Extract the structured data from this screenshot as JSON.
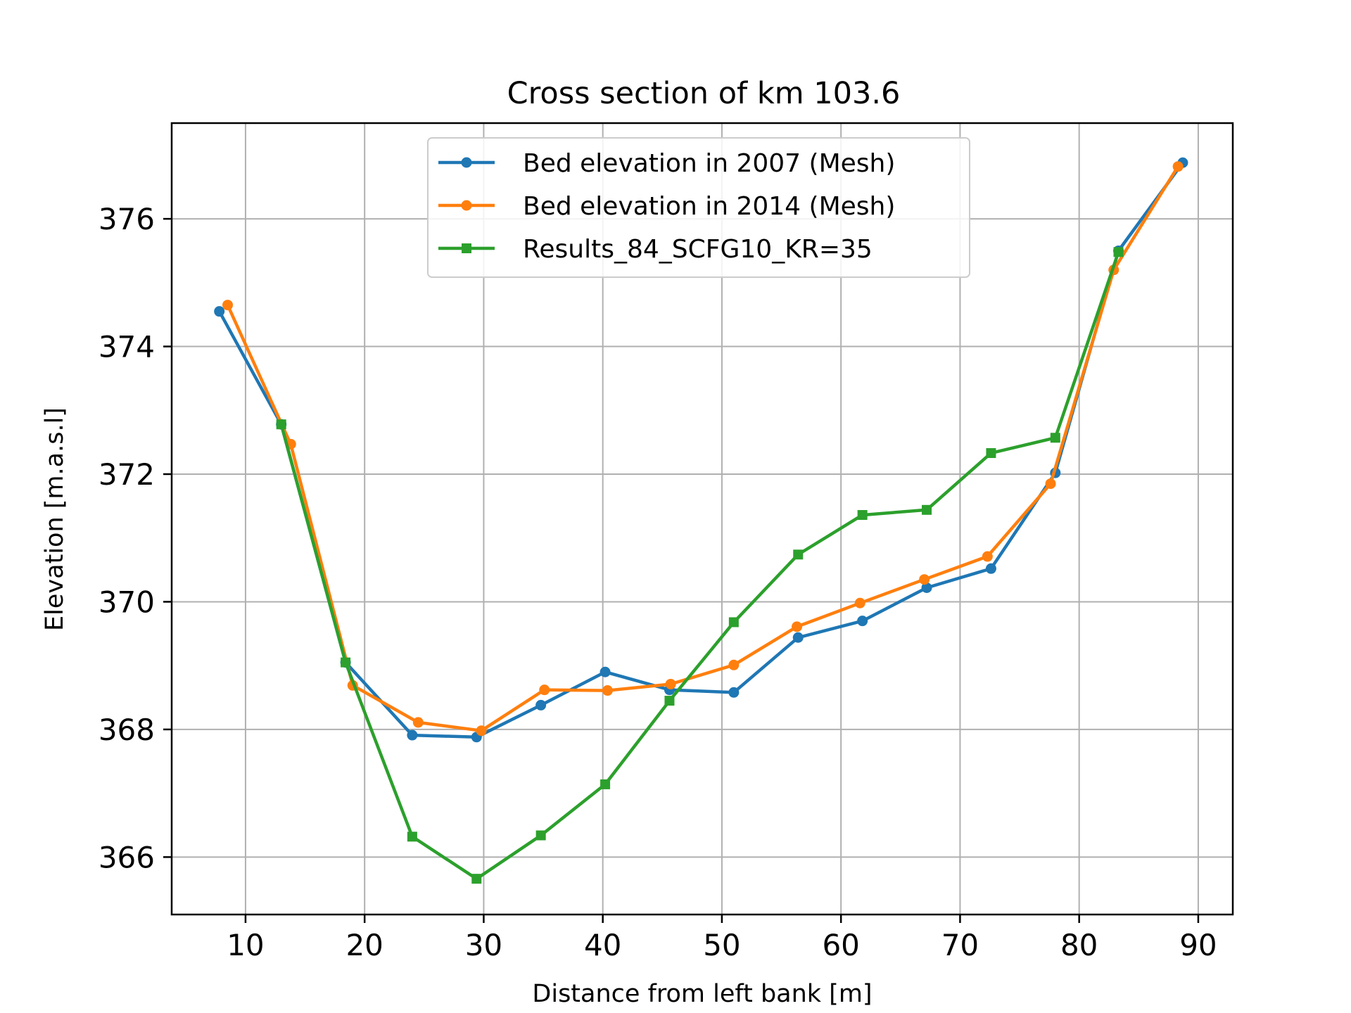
{
  "chart_data": {
    "type": "line",
    "title": "Cross section of km 103.6",
    "xlabel": "Distance from left bank [m]",
    "ylabel": "Elevation [m.a.s.l]",
    "xlim": [
      3.8,
      92.9
    ],
    "ylim": [
      365.1,
      377.5
    ],
    "xticks": [
      10,
      20,
      30,
      40,
      50,
      60,
      70,
      80,
      90
    ],
    "yticks": [
      366,
      368,
      370,
      372,
      374,
      376
    ],
    "grid": true,
    "legend_position": "top-center",
    "series": [
      {
        "name": "Bed elevation in 2007 (Mesh)",
        "color": "#1f77b4",
        "marker": "circle",
        "x": [
          7.8,
          13.0,
          18.4,
          24.0,
          29.4,
          34.8,
          40.2,
          45.6,
          51.0,
          56.4,
          61.8,
          67.2,
          72.6,
          78.0,
          83.3,
          88.7
        ],
        "y": [
          374.55,
          372.78,
          369.05,
          367.91,
          367.88,
          368.38,
          368.9,
          368.62,
          368.58,
          369.44,
          369.7,
          370.22,
          370.52,
          372.02,
          375.5,
          376.88
        ]
      },
      {
        "name": "Bed elevation in 2014 (Mesh)",
        "color": "#ff7f0e",
        "marker": "circle",
        "x": [
          8.5,
          13.8,
          19.0,
          24.5,
          29.8,
          35.1,
          40.4,
          45.7,
          51.0,
          56.3,
          61.6,
          67.0,
          72.3,
          77.6,
          82.9,
          88.3
        ],
        "y": [
          374.65,
          372.47,
          368.69,
          368.11,
          367.98,
          368.62,
          368.61,
          368.71,
          369.01,
          369.61,
          369.98,
          370.35,
          370.71,
          371.85,
          375.2,
          376.82
        ]
      },
      {
        "name": "Results_84_SCFG10_KR=35",
        "color": "#2ca02c",
        "marker": "square",
        "x": [
          13.0,
          18.4,
          24.0,
          29.4,
          34.8,
          40.2,
          45.6,
          51.0,
          56.4,
          61.8,
          67.2,
          72.6,
          78.0,
          83.3
        ],
        "y": [
          372.78,
          369.05,
          366.32,
          365.66,
          366.34,
          367.14,
          368.45,
          369.68,
          370.74,
          371.36,
          371.44,
          372.33,
          372.57,
          375.48
        ]
      }
    ]
  }
}
